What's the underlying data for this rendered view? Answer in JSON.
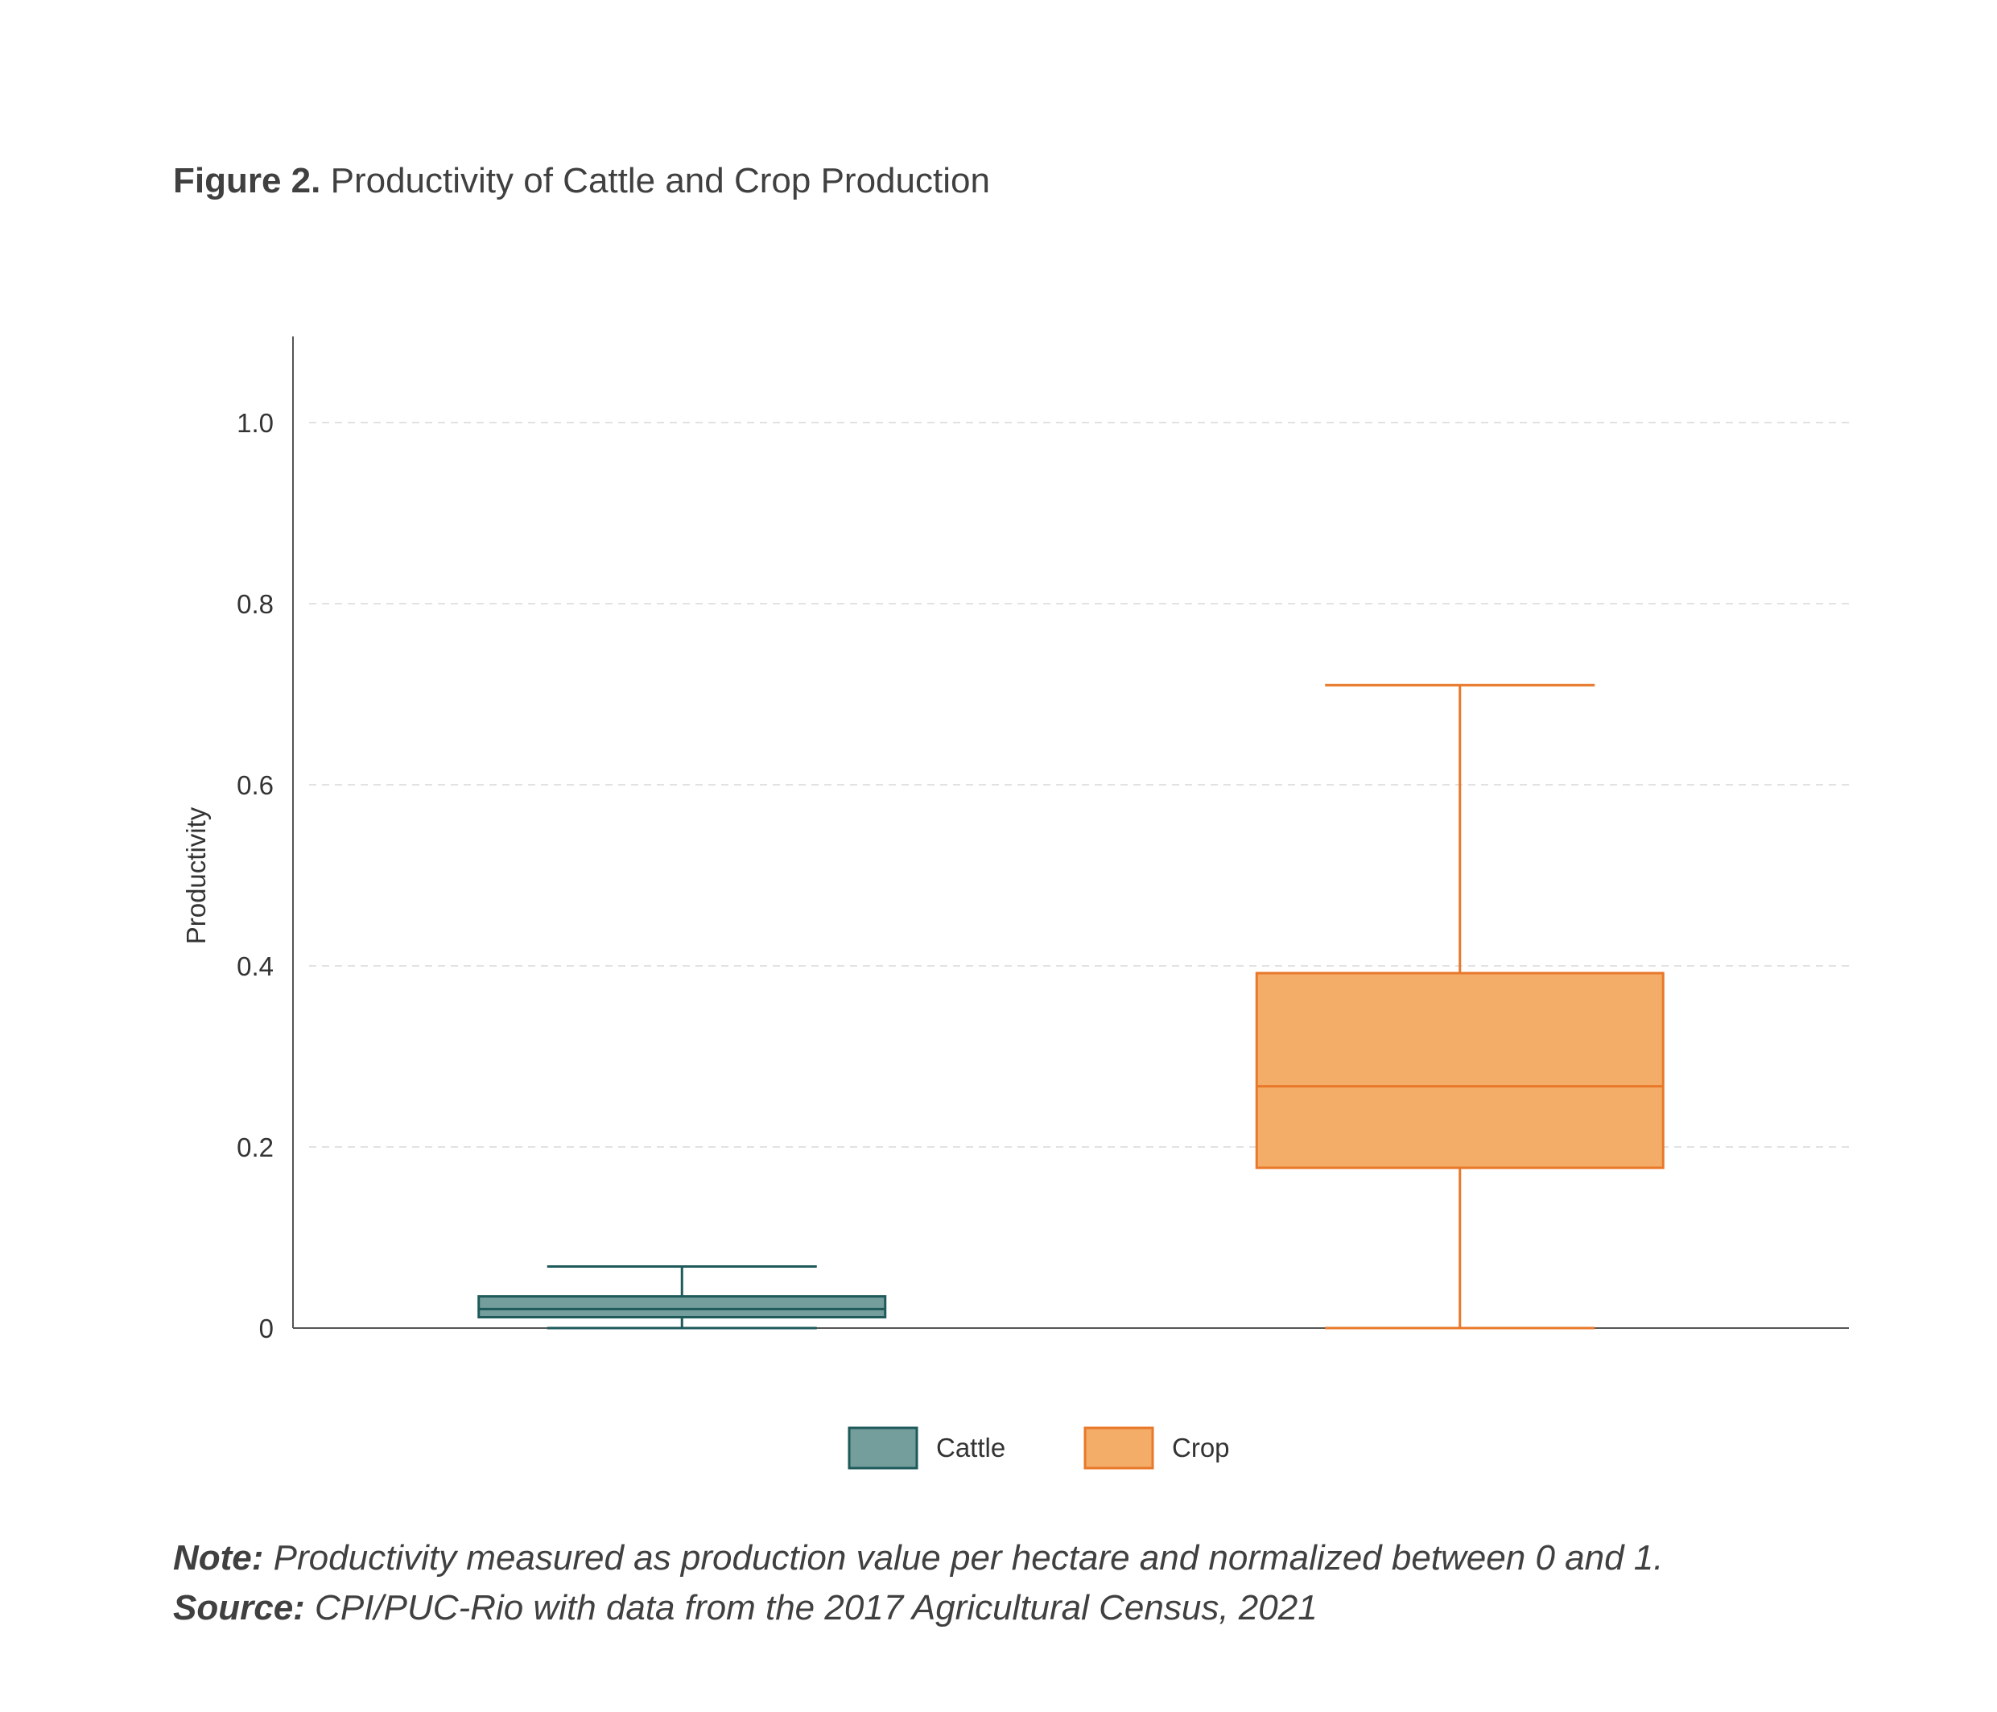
{
  "figure": {
    "label": "Figure 2.",
    "title": "Productivity of Cattle and Crop Production"
  },
  "chart_data": {
    "type": "box",
    "ylabel": "Productivity",
    "xlabel": "",
    "ylim": [
      0,
      1.1
    ],
    "yticks": [
      {
        "value": 0,
        "label": "0"
      },
      {
        "value": 0.2,
        "label": "0.2"
      },
      {
        "value": 0.4,
        "label": "0.4"
      },
      {
        "value": 0.6,
        "label": "0.6"
      },
      {
        "value": 0.8,
        "label": "0.8"
      },
      {
        "value": 1.0,
        "label": "1.0"
      }
    ],
    "grid": "horizontal-dashed",
    "legend": "bottom-center",
    "series": [
      {
        "name": "Cattle",
        "min": 0,
        "q1": 0.012,
        "median": 0.021,
        "q3": 0.035,
        "max": 0.068,
        "fill": "#739e9c",
        "stroke": "#1f5a5b"
      },
      {
        "name": "Crop",
        "min": 0,
        "q1": 0.177,
        "median": 0.267,
        "q3": 0.392,
        "max": 0.71,
        "fill": "#f3ad69",
        "stroke": "#e8782a"
      }
    ]
  },
  "note": {
    "label": "Note:",
    "text": " Productivity measured as production value per hectare and normalized between 0 and 1."
  },
  "source": {
    "label": "Source:",
    "text": " CPI/PUC-Rio with data from the 2017 Agricultural Census, 2021"
  }
}
